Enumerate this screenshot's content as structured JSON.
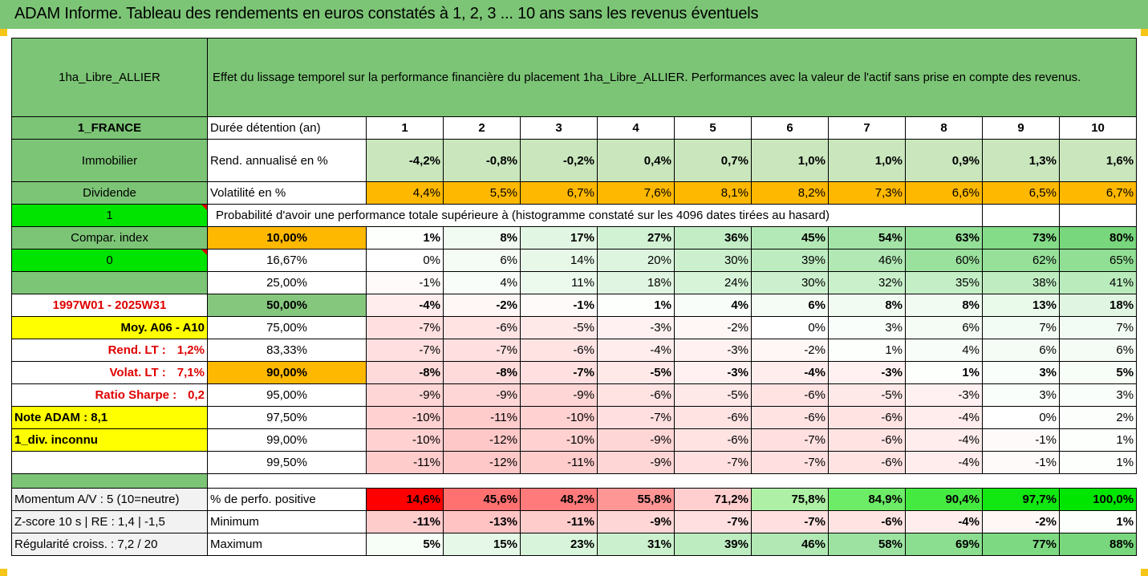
{
  "header": {
    "title": "ADAM Informe. Tableau des rendements en euros constatés à 1, 2, 3 ... 10 ans sans les revenus éventuels"
  },
  "title_block": {
    "asset": "1ha_Libre_ALLIER",
    "description": "Effet du lissage temporel sur la performance financière du placement 1ha_Libre_ALLIER. Performances avec la valeur de l'actif sans prise en compte des revenus."
  },
  "left": {
    "country": "1_FRANCE",
    "category": "Immobilier",
    "income": "Dividende",
    "value_1": "1",
    "compar_index": "Compar. index",
    "value_0": "0",
    "period": "1997W01 - 2025W31",
    "moy": "Moy. A06 - A10",
    "rend_lt_label": "Rend. LT :",
    "rend_lt_value": "1,2%",
    "volat_lt_label": "Volat. LT :",
    "volat_lt_value": "7,1%",
    "sharpe_label": "Ratio Sharpe :",
    "sharpe_value": "0,2",
    "note": "Note ADAM : 8,1",
    "div": "1_div. inconnu"
  },
  "summary": {
    "duration_label": "Durée détention (an)",
    "years": [
      "1",
      "2",
      "3",
      "4",
      "5",
      "6",
      "7",
      "8",
      "9",
      "10"
    ],
    "rend_label": "Rend. annualisé en %",
    "rend": [
      "-4,2%",
      "-0,8%",
      "-0,2%",
      "0,4%",
      "0,7%",
      "1,0%",
      "1,0%",
      "0,9%",
      "1,3%",
      "1,6%"
    ],
    "vol_label": "Volatilité en %",
    "vol": [
      "4,4%",
      "5,5%",
      "6,7%",
      "7,6%",
      "8,1%",
      "8,2%",
      "7,3%",
      "6,6%",
      "6,5%",
      "6,7%"
    ]
  },
  "probability": {
    "heading": "Probabilité d'avoir une performance totale supérieure à (histogramme constaté sur les 4096 dates tirées au hasard)",
    "rows": [
      {
        "pct": "10,00%",
        "vals": [
          "1%",
          "8%",
          "17%",
          "27%",
          "36%",
          "45%",
          "54%",
          "63%",
          "73%",
          "80%"
        ]
      },
      {
        "pct": "16,67%",
        "vals": [
          "0%",
          "6%",
          "14%",
          "20%",
          "30%",
          "39%",
          "46%",
          "60%",
          "62%",
          "65%"
        ]
      },
      {
        "pct": "25,00%",
        "vals": [
          "-1%",
          "4%",
          "11%",
          "18%",
          "24%",
          "30%",
          "32%",
          "35%",
          "38%",
          "41%"
        ]
      },
      {
        "pct": "50,00%",
        "vals": [
          "-4%",
          "-2%",
          "-1%",
          "1%",
          "4%",
          "6%",
          "8%",
          "8%",
          "13%",
          "18%"
        ]
      },
      {
        "pct": "75,00%",
        "vals": [
          "-7%",
          "-6%",
          "-5%",
          "-3%",
          "-2%",
          "0%",
          "3%",
          "6%",
          "7%",
          "7%"
        ]
      },
      {
        "pct": "83,33%",
        "vals": [
          "-7%",
          "-7%",
          "-6%",
          "-4%",
          "-3%",
          "-2%",
          "1%",
          "4%",
          "6%",
          "6%"
        ]
      },
      {
        "pct": "90,00%",
        "vals": [
          "-8%",
          "-8%",
          "-7%",
          "-5%",
          "-3%",
          "-4%",
          "-3%",
          "1%",
          "3%",
          "5%"
        ]
      },
      {
        "pct": "95,00%",
        "vals": [
          "-9%",
          "-9%",
          "-9%",
          "-6%",
          "-5%",
          "-6%",
          "-5%",
          "-3%",
          "3%",
          "3%"
        ]
      },
      {
        "pct": "97,50%",
        "vals": [
          "-10%",
          "-11%",
          "-10%",
          "-7%",
          "-6%",
          "-6%",
          "-6%",
          "-4%",
          "0%",
          "2%"
        ]
      },
      {
        "pct": "99,00%",
        "vals": [
          "-10%",
          "-12%",
          "-10%",
          "-9%",
          "-6%",
          "-7%",
          "-6%",
          "-4%",
          "-1%",
          "1%"
        ]
      },
      {
        "pct": "99,50%",
        "vals": [
          "-11%",
          "-12%",
          "-11%",
          "-9%",
          "-7%",
          "-7%",
          "-6%",
          "-4%",
          "-1%",
          "1%"
        ]
      }
    ]
  },
  "bottom": {
    "momentum": "Momentum A/V : 5 (10=neutre)",
    "zscore": "Z-score 10 s  |  RE : 1,4  |  -1,5",
    "regularite": "Régularité croiss. : 7,2 / 20",
    "pos_label": "% de perfo. positive",
    "pos": [
      "14,6%",
      "45,6%",
      "48,2%",
      "55,8%",
      "71,2%",
      "75,8%",
      "84,9%",
      "90,4%",
      "97,7%",
      "100,0%"
    ],
    "min_label": "Minimum",
    "min": [
      "-11%",
      "-13%",
      "-11%",
      "-9%",
      "-7%",
      "-7%",
      "-6%",
      "-4%",
      "-2%",
      "1%"
    ],
    "max_label": "Maximum",
    "max": [
      "5%",
      "15%",
      "23%",
      "31%",
      "39%",
      "46%",
      "58%",
      "69%",
      "77%",
      "88%"
    ]
  },
  "colors": {
    "header_green": "#7cc576",
    "bright_green": "#00e400",
    "yellow": "#ffff00",
    "orange": "#ffb800",
    "red_text": "#e00000"
  }
}
